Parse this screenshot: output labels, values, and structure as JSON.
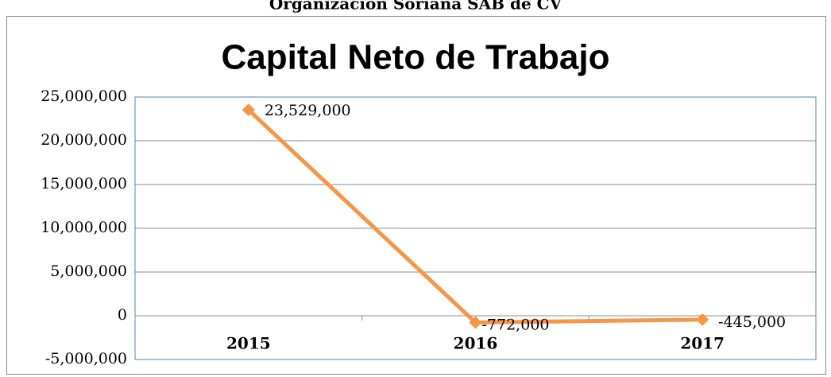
{
  "page_header": "Organización Soriana SAB de CV",
  "chart_data": {
    "type": "line",
    "title": "Capital Neto de Trabajo",
    "categories": [
      "2015",
      "2016",
      "2017"
    ],
    "values": [
      23529000,
      -772000,
      -445000
    ],
    "value_labels": [
      "23,529,000",
      "-772,000",
      "-445,000"
    ],
    "color": "#f79646",
    "ylim": [
      -5000000,
      25000000
    ],
    "yticks": [
      {
        "value": -5000000,
        "label": "-5,000,000"
      },
      0,
      {
        "value": 5000000,
        "label": "5,000,000"
      },
      {
        "value": 10000000,
        "label": "10,000,000"
      },
      {
        "value": 15000000,
        "label": "15,000,000"
      },
      {
        "value": 20000000,
        "label": "20,000,000"
      },
      {
        "value": 25000000,
        "label": "25,000,000"
      }
    ],
    "grid": true
  }
}
